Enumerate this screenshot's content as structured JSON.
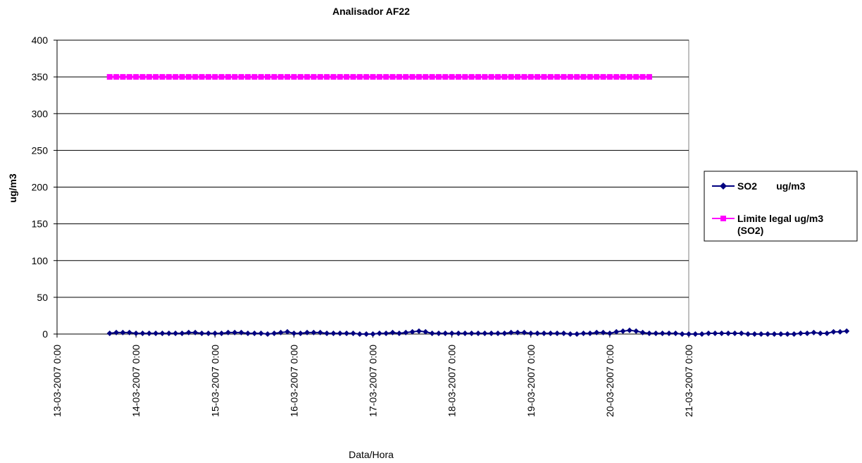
{
  "chart_data": {
    "type": "line",
    "title": "Analisador AF22",
    "xlabel": "Data/Hora",
    "ylabel": "ug/m3",
    "ylim": [
      0,
      400
    ],
    "yticks": [
      0,
      50,
      100,
      150,
      200,
      250,
      300,
      350,
      400
    ],
    "xlim": [
      "13-03-2007 0:00",
      "21-03-2007 0:00"
    ],
    "xticks": [
      "13-03-2007 0:00",
      "14-03-2007 0:00",
      "15-03-2007 0:00",
      "16-03-2007 0:00",
      "17-03-2007 0:00",
      "18-03-2007 0:00",
      "19-03-2007 0:00",
      "20-03-2007 0:00",
      "21-03-2007 0:00"
    ],
    "grid": "horizontal",
    "legend_position": "right",
    "series": [
      {
        "name": "SO2       ug/m3",
        "color": "#000080",
        "marker": "diamond",
        "x_start": "13-03-2007 16:00",
        "x_step_hours": 2,
        "values": [
          1,
          2,
          2,
          2,
          1,
          1,
          1,
          1,
          1,
          1,
          1,
          1,
          2,
          2,
          1,
          1,
          1,
          1,
          2,
          2,
          2,
          1,
          1,
          1,
          0,
          1,
          2,
          3,
          1,
          1,
          2,
          2,
          2,
          1,
          1,
          1,
          1,
          1,
          0,
          0,
          0,
          1,
          1,
          2,
          1,
          2,
          3,
          4,
          3,
          1,
          1,
          1,
          1,
          1,
          1,
          1,
          1,
          1,
          1,
          1,
          1,
          2,
          2,
          2,
          1,
          1,
          1,
          1,
          1,
          1,
          0,
          0,
          1,
          1,
          2,
          2,
          1,
          3,
          4,
          5,
          4,
          2,
          1,
          1,
          1,
          1,
          1,
          0,
          0,
          0,
          0,
          1,
          1,
          1,
          1,
          1,
          1,
          0,
          0,
          0,
          0,
          0,
          0,
          0,
          0,
          1,
          1,
          2,
          1,
          1,
          3,
          3,
          4
        ]
      },
      {
        "name": "Limite legal ug/m3 (SO2)",
        "legend_lines": [
          "Limite legal ug/m3",
          "(SO2)"
        ],
        "color": "#ff00ff",
        "marker": "square",
        "x_start": "13-03-2007 16:00",
        "x_end": "20-03-2007 12:00",
        "value": 350
      }
    ]
  }
}
